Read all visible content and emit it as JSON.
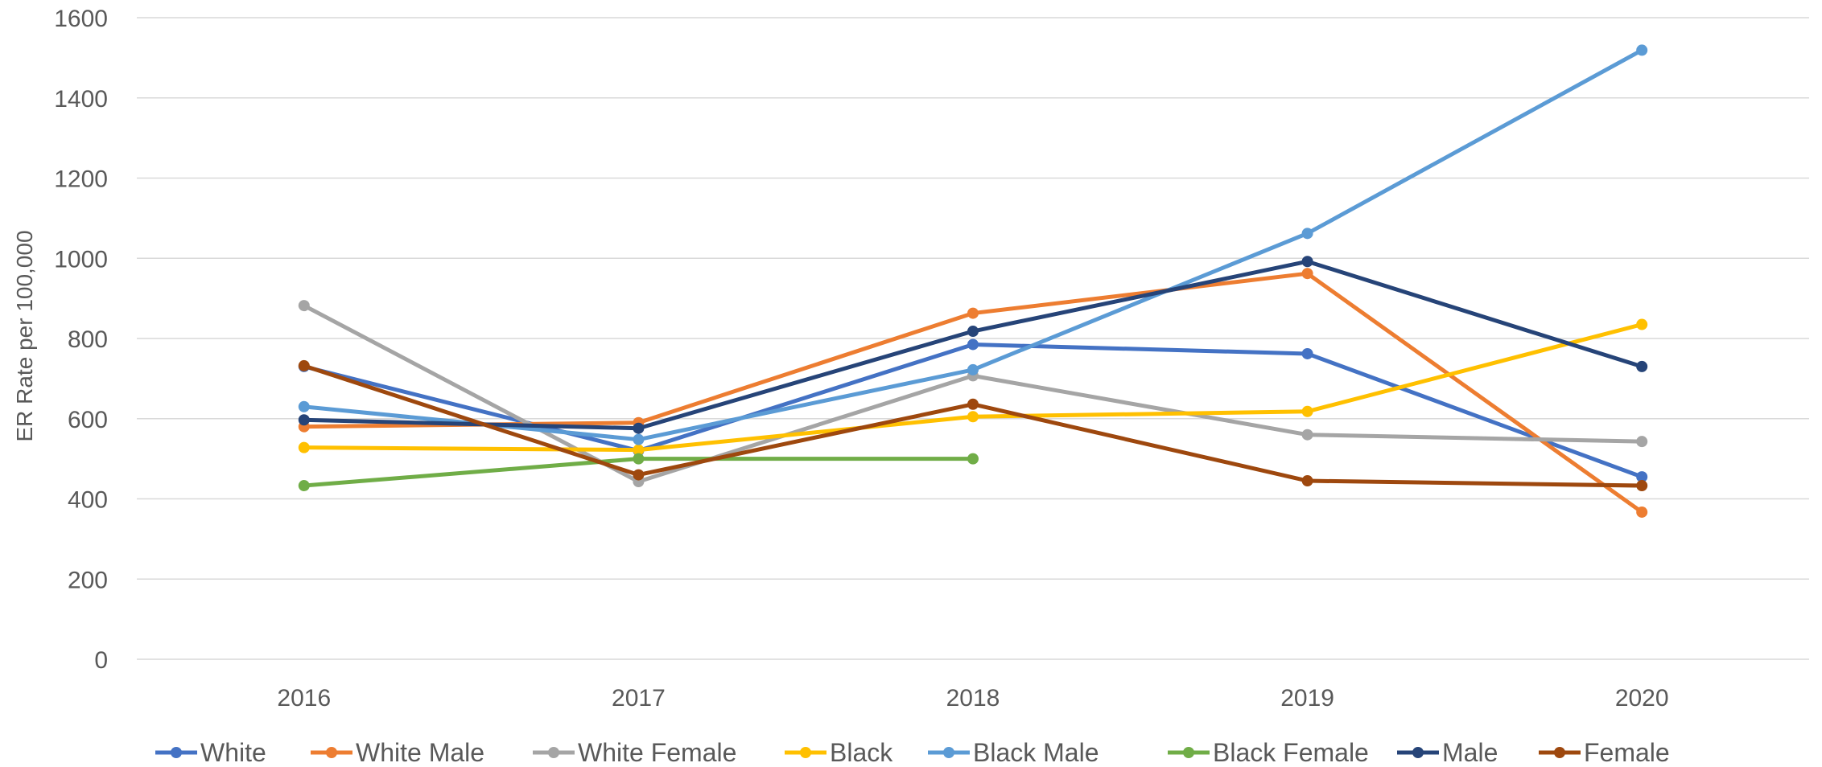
{
  "chart_data": {
    "type": "line",
    "title": "",
    "xlabel": "",
    "ylabel": "ER Rate per 100,000",
    "categories": [
      "2016",
      "2017",
      "2018",
      "2019",
      "2020"
    ],
    "ylim": [
      0,
      1600
    ],
    "yticks": [
      "0",
      "200",
      "400",
      "600",
      "800",
      "1000",
      "1200",
      "1400",
      "1600"
    ],
    "grid": "horizontal",
    "legend_position": "bottom",
    "series": [
      {
        "name": "White",
        "color": "#4472C4",
        "values": [
          730,
          520,
          785,
          762,
          455
        ]
      },
      {
        "name": "White Male",
        "color": "#ED7D31",
        "values": [
          580,
          590,
          863,
          962,
          367
        ]
      },
      {
        "name": "White Female",
        "color": "#A5A5A5",
        "values": [
          882,
          443,
          707,
          560,
          543
        ]
      },
      {
        "name": "Black",
        "color": "#FFC000",
        "values": [
          528,
          522,
          605,
          618,
          835
        ]
      },
      {
        "name": "Black Male",
        "color": "#5B9BD5",
        "values": [
          630,
          548,
          722,
          1062,
          1519
        ]
      },
      {
        "name": "Black Female",
        "color": "#70AD47",
        "values": [
          433,
          500,
          500,
          null,
          null
        ]
      },
      {
        "name": "Male",
        "color": "#264478",
        "values": [
          597,
          576,
          818,
          992,
          730
        ]
      },
      {
        "name": "Female",
        "color": "#9E480E",
        "values": [
          732,
          460,
          636,
          445,
          433
        ]
      }
    ]
  }
}
